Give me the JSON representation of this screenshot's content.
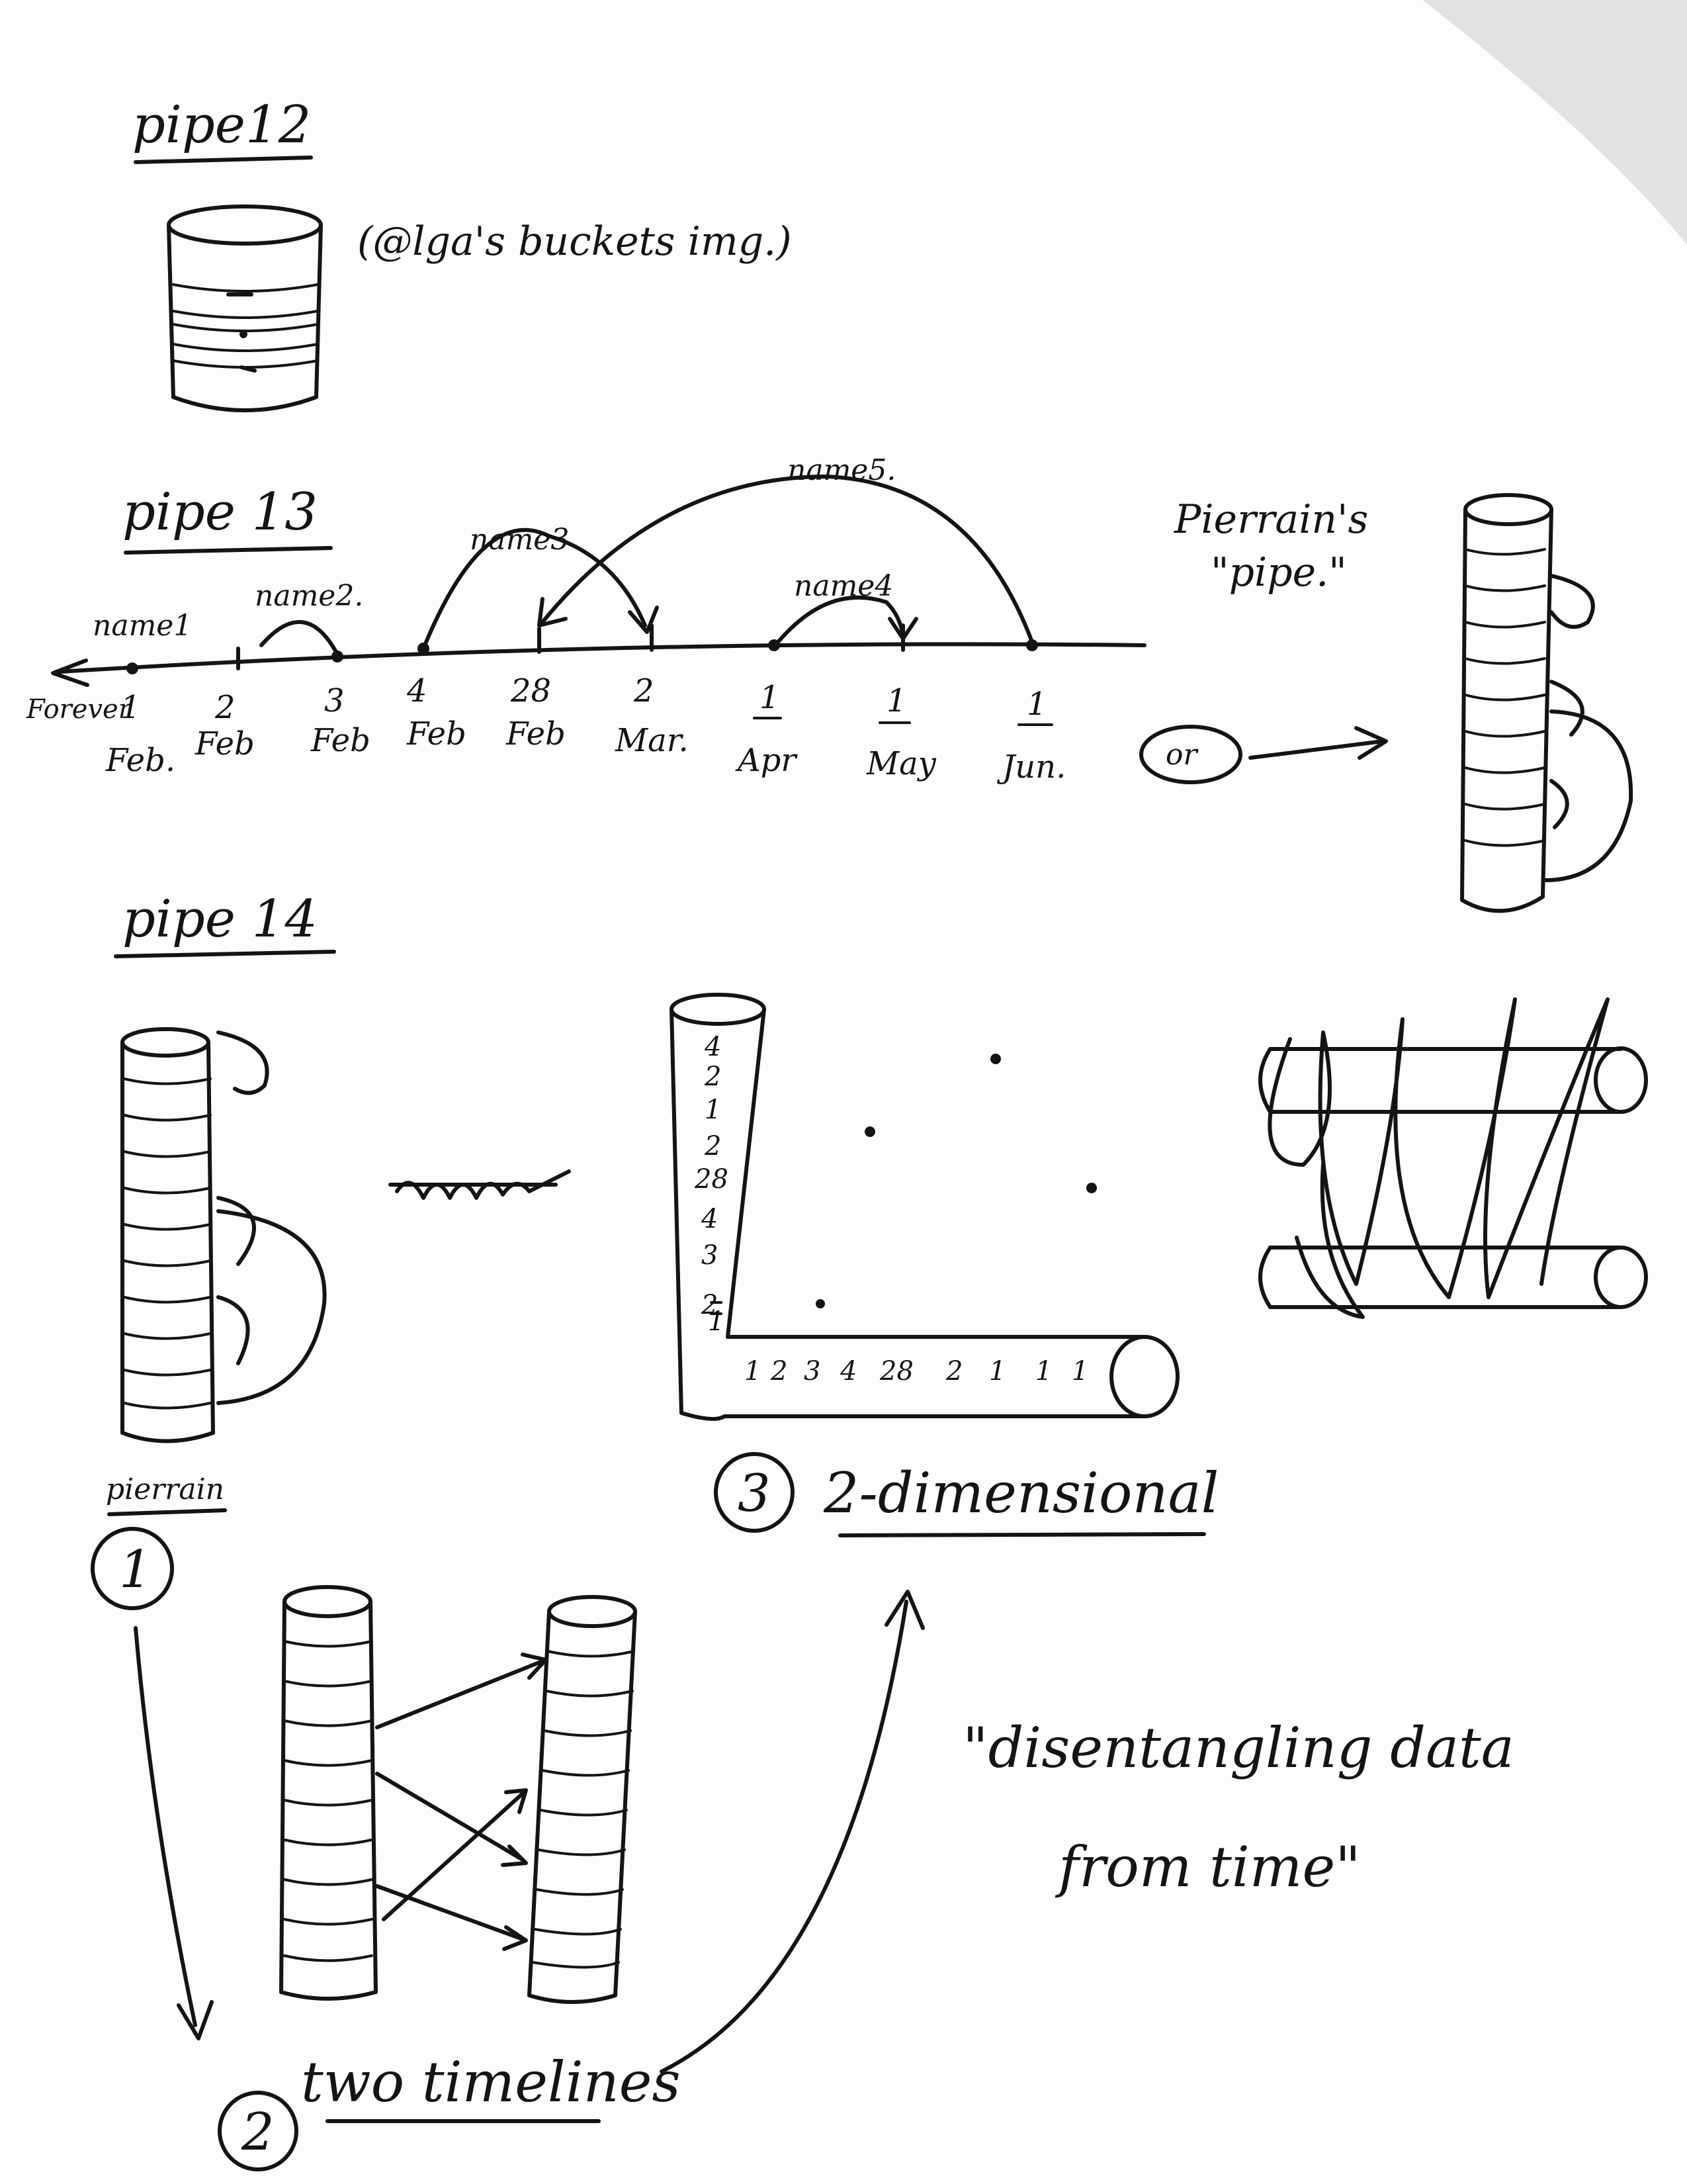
{
  "pipe12": {
    "title": "pipe12",
    "note": "(@lga's buckets img.)"
  },
  "pipe13": {
    "title": "pipe 13",
    "arc_labels": [
      "name1",
      "name2.",
      "name3",
      "name4",
      "name5."
    ],
    "timeline_start": "Forever",
    "ticks": [
      {
        "top": "1",
        "bottom": "Feb."
      },
      {
        "top": "2",
        "bottom": "Feb"
      },
      {
        "top": "3",
        "bottom": "Feb"
      },
      {
        "top": "4",
        "bottom": "Feb"
      },
      {
        "top": "28",
        "bottom": "Feb"
      },
      {
        "top": "2",
        "bottom": "Mar."
      },
      {
        "top": "1",
        "bottom": "Apr"
      },
      {
        "top": "1",
        "bottom": "May"
      },
      {
        "top": "1",
        "bottom": "Jun."
      }
    ],
    "or_label": "or",
    "pipe_caption_line1": "Pierrain's",
    "pipe_caption_line2": "\"pipe.\""
  },
  "pipe14": {
    "title": "pipe 14",
    "option1_label": "pierrain",
    "option1_number": "1",
    "option2_label": "two timelines",
    "option2_number": "2",
    "option3_number": "3",
    "option3_label": "2-dimensional",
    "vertical_axis": [
      "4",
      "2",
      "1",
      "2",
      "28",
      "4",
      "3",
      "2",
      "1"
    ],
    "horizontal_axis": [
      "1",
      "2",
      "3",
      "4",
      "28",
      "2",
      "1",
      "1",
      "1"
    ]
  },
  "quote": {
    "line1": "\"disentangling data",
    "line2": "from time\""
  }
}
